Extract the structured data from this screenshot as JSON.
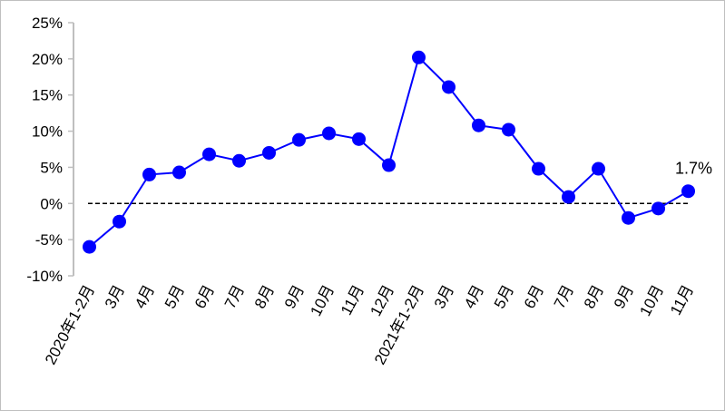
{
  "chart_data": {
    "type": "line",
    "title": "",
    "xlabel": "",
    "ylabel": "",
    "categories": [
      "2020年1-2月",
      "3月",
      "4月",
      "5月",
      "6月",
      "7月",
      "8月",
      "9月",
      "10月",
      "11月",
      "12月",
      "2021年1-2月",
      "3月",
      "4月",
      "5月",
      "6月",
      "7月",
      "8月",
      "9月",
      "10月",
      "11月"
    ],
    "series": [
      {
        "values": [
          -6.0,
          -2.5,
          4.0,
          4.3,
          6.8,
          5.9,
          7.0,
          8.8,
          9.7,
          8.9,
          5.3,
          20.2,
          16.1,
          10.8,
          10.2,
          4.8,
          0.9,
          4.8,
          -2.0,
          -0.7,
          1.7
        ]
      }
    ],
    "yticks": [
      "-10%",
      "-5%",
      "0%",
      "5%",
      "10%",
      "15%",
      "20%",
      "25%"
    ],
    "ylim": [
      -10,
      25
    ],
    "reference_line": 0,
    "annotation": "1.7%",
    "grid": false,
    "colors": {
      "line": "#0000ff",
      "marker": "#0000ff",
      "reference": "#000000",
      "axis": "#bfbfbf"
    }
  }
}
